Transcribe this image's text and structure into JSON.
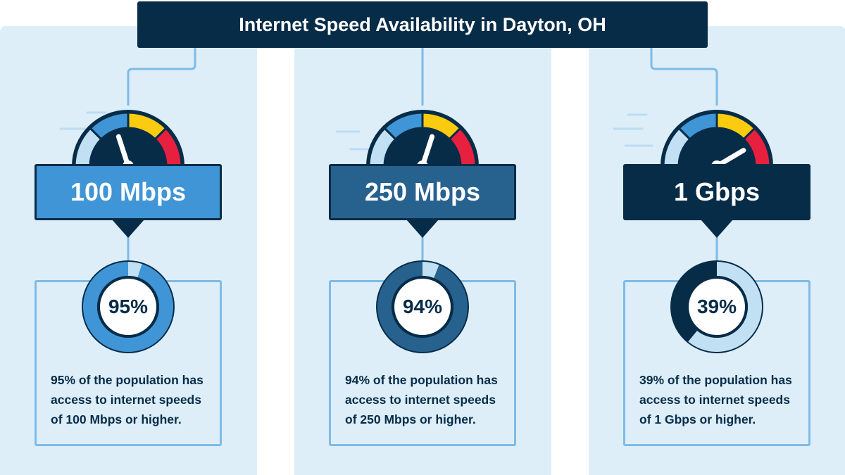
{
  "title": "Internet Speed Availability in Dayton, OH",
  "colors": {
    "background": "#ffffff",
    "panel": "#ddeef9",
    "navy": "#072c48",
    "light_blue": "#c2e0f3",
    "mid_blue": "#3f95d6",
    "steel_blue": "#27628f",
    "outline_blue": "#7fbbe6",
    "yellow": "#fbcb10",
    "red": "#e8203f"
  },
  "chart_data": [
    {
      "type": "pie",
      "title": "100 Mbps",
      "values": [
        95,
        5
      ],
      "value_label": "95%",
      "description": [
        "95% of the population has",
        "access to internet speeds",
        "of 100 Mbps or higher."
      ],
      "accent": "#3f95d6",
      "gauge_level": 0.4
    },
    {
      "type": "pie",
      "title": "250 Mbps",
      "values": [
        94,
        6
      ],
      "value_label": "94%",
      "description": [
        "94% of the population has",
        "access to internet speeds",
        "of 250 Mbps or higher."
      ],
      "accent": "#27628f",
      "gauge_level": 0.6
    },
    {
      "type": "pie",
      "title": "1 Gbps",
      "values": [
        39,
        61
      ],
      "value_label": "39%",
      "description": [
        "39% of the population has",
        "access to internet speeds",
        "of 1 Gbps or higher."
      ],
      "accent": "#072c48",
      "gauge_level": 0.83
    }
  ]
}
